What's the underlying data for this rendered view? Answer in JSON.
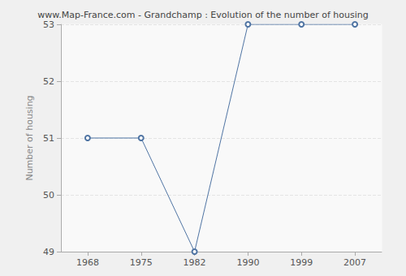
{
  "chart_data": {
    "type": "line",
    "title": "www.Map-France.com - Grandchamp : Evolution of the number of housing",
    "y_label": "Number of housing",
    "categories": [
      "1968",
      "1975",
      "1982",
      "1990",
      "1999",
      "2007"
    ],
    "values": [
      51,
      51,
      49,
      53,
      53,
      53
    ],
    "color": "#4f74a3",
    "marker": "circle",
    "line_style": "solid",
    "ylim": [
      49,
      53
    ],
    "yticks": [
      49,
      50,
      51,
      52,
      53
    ],
    "grid": true
  }
}
